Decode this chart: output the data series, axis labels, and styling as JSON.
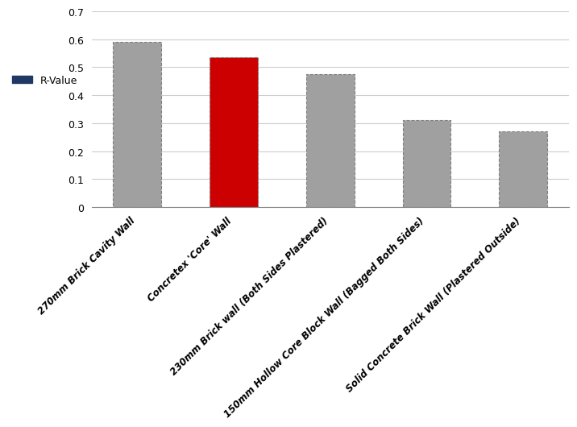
{
  "categories": [
    "270mm Brick Cavity Wall",
    "Concretex 'Core' Wall",
    "230mm Brick wall (Both Sides Plastered)",
    "150mm Hollow Core Block Wall (Bagged Both Sides)",
    "Solid Concrete Brick Wall (Plastered Outside)"
  ],
  "values": [
    0.59,
    0.535,
    0.475,
    0.31,
    0.27
  ],
  "bar_colors": [
    "#a0a0a0",
    "#cc0000",
    "#a0a0a0",
    "#a0a0a0",
    "#a0a0a0"
  ],
  "bar_edge_color": "#808080",
  "bar_edge_style": "dashed",
  "bar_edge_width": 0.8,
  "ylim": [
    0,
    0.7
  ],
  "yticks": [
    0,
    0.1,
    0.2,
    0.3,
    0.4,
    0.5,
    0.6,
    0.7
  ],
  "legend_label": "R-Value",
  "legend_color": "#1f3864",
  "background_color": "#ffffff"
}
